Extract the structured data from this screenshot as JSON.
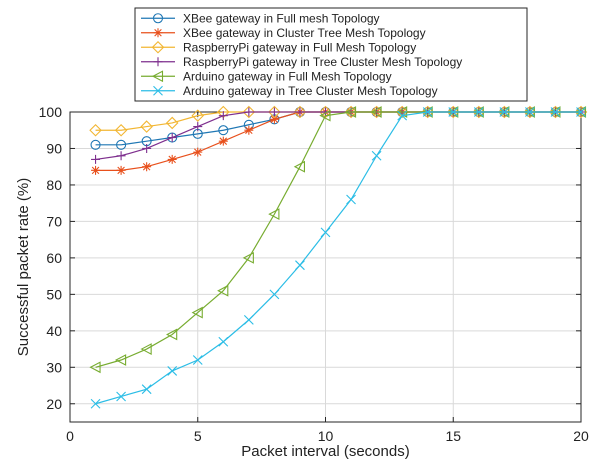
{
  "chart_data": {
    "type": "line",
    "title": "",
    "xlabel": "Packet interval (seconds)",
    "ylabel": "Successful packet rate (%)",
    "xlim": [
      0,
      20
    ],
    "ylim": [
      15,
      100
    ],
    "xticks": [
      0,
      5,
      10,
      15,
      20
    ],
    "yticks": [
      20,
      30,
      40,
      50,
      60,
      70,
      80,
      90,
      100
    ],
    "grid": true,
    "legend_position": "top-center",
    "x": [
      1,
      2,
      3,
      4,
      5,
      6,
      7,
      8,
      9,
      10,
      11,
      12,
      13,
      14,
      15,
      16,
      17,
      18,
      19,
      20
    ],
    "series": [
      {
        "name": "XBee gateway in Full mesh Topology",
        "color": "#1f77b4",
        "marker": "circle",
        "values": [
          91,
          91,
          92,
          93,
          94,
          95,
          96.5,
          98,
          100,
          100,
          100,
          100,
          100,
          100,
          100,
          100,
          100,
          100,
          100,
          100
        ]
      },
      {
        "name": "XBee gateway in Cluster Tree Mesh Topology",
        "color": "#e8501c",
        "marker": "asterisk",
        "values": [
          84,
          84,
          85,
          87,
          89,
          92,
          95,
          98,
          100,
          100,
          100,
          100,
          100,
          100,
          100,
          100,
          100,
          100,
          100,
          100
        ]
      },
      {
        "name": "RaspberryPi gateway in Full Mesh Topology",
        "color": "#f2b632",
        "marker": "diamond",
        "values": [
          95,
          95,
          96,
          97,
          99,
          100,
          100,
          100,
          100,
          100,
          100,
          100,
          100,
          100,
          100,
          100,
          100,
          100,
          100,
          100
        ]
      },
      {
        "name": "RaspberryPi gateway in Tree Cluster Mesh Topology",
        "color": "#7e2f8e",
        "marker": "plus",
        "values": [
          87,
          88,
          90,
          93,
          96,
          99,
          100,
          100,
          100,
          100,
          100,
          100,
          100,
          100,
          100,
          100,
          100,
          100,
          100,
          100
        ]
      },
      {
        "name": "Arduino gateway in Full Mesh Topology",
        "color": "#77ac30",
        "marker": "triangle-left",
        "values": [
          30,
          32,
          35,
          39,
          45,
          51,
          60,
          72,
          85,
          99,
          100,
          100,
          100,
          100,
          100,
          100,
          100,
          100,
          100,
          100
        ]
      },
      {
        "name": "Arduino gateway in Tree Cluster Mesh Topology",
        "color": "#2bbde6",
        "marker": "x",
        "values": [
          20,
          22,
          24,
          29,
          32,
          37,
          43,
          50,
          58,
          67,
          76,
          88,
          99,
          100,
          100,
          100,
          100,
          100,
          100,
          100
        ]
      }
    ]
  }
}
